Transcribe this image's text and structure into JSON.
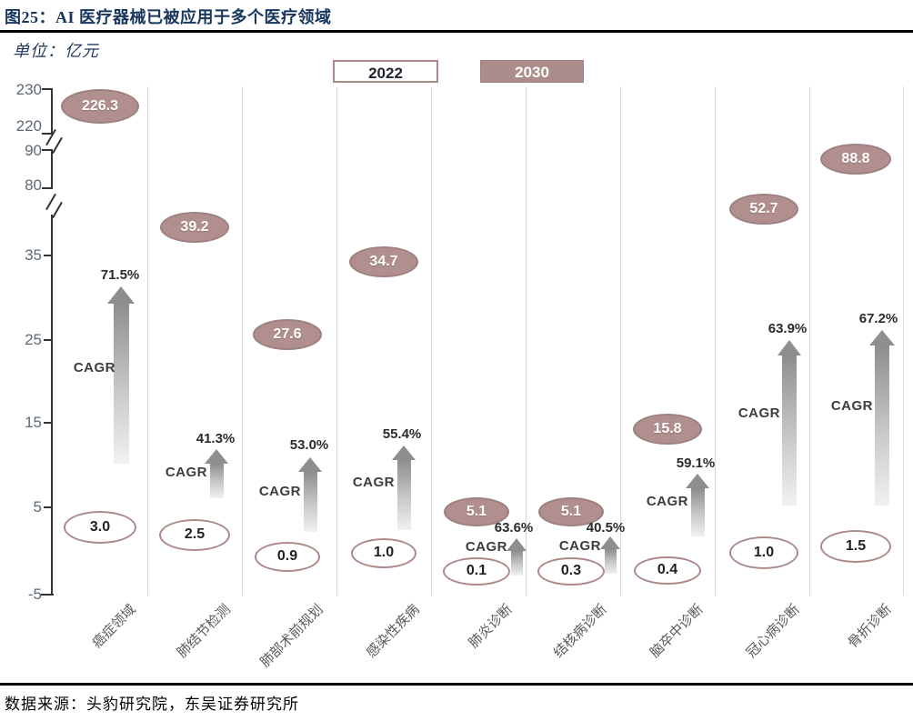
{
  "figure": {
    "title": "图25：AI 医疗器械已被应用于多个医疗领域",
    "source": "数据来源：头豹研究院，东吴证券研究所"
  },
  "chart_data": {
    "type": "bar",
    "title": "图25：AI 医疗器械已被应用于多个医疗领域",
    "unit_label": "单位：亿元",
    "legend": [
      {
        "label": "2022",
        "style": "outline"
      },
      {
        "label": "2030",
        "style": "filled"
      }
    ],
    "legend_position": "top",
    "categories": [
      "癌症领域",
      "肺结节检测",
      "肺部术前规划",
      "感染性疾病",
      "肺炎诊断",
      "结核病诊断",
      "脑卒中诊断",
      "冠心病诊断",
      "骨折诊断"
    ],
    "series": [
      {
        "name": "2022",
        "values": [
          3.0,
          2.5,
          0.9,
          1.0,
          0.1,
          0.3,
          0.4,
          1.0,
          1.5
        ],
        "labels": [
          "3.0",
          "2.5",
          "0.9",
          "1.0",
          "0.1",
          "0.3",
          "0.4",
          "1.0",
          "1.5"
        ]
      },
      {
        "name": "2030",
        "values": [
          226.3,
          39.2,
          27.6,
          34.7,
          5.1,
          5.1,
          15.8,
          52.7,
          88.8
        ],
        "labels": [
          "226.3",
          "39.2",
          "27.6",
          "34.7",
          "5.1",
          "5.1",
          "15.8",
          "52.7",
          "88.8"
        ]
      }
    ],
    "cagr_label": "CAGR",
    "cagr_percent": [
      "71.5%",
      "41.3%",
      "53.0%",
      "55.4%",
      "63.6%",
      "40.5%",
      "59.1%",
      "63.9%",
      "67.2%"
    ],
    "y_axis": {
      "ticks": [
        230,
        220,
        90,
        80,
        35,
        25,
        15,
        5,
        -5
      ],
      "tick_labels": [
        "230",
        "220",
        "90",
        "80",
        "35",
        "25",
        "15",
        "5",
        "-5"
      ],
      "breaks": [
        [
          90,
          220
        ],
        [
          35,
          80
        ]
      ],
      "grid": "vertical-category-separators"
    },
    "colors": {
      "title_navy": "#17365d",
      "oval_fill": "#b18f8f",
      "oval_border": "#9d8080",
      "open_oval_border": "#ad8a8a",
      "legend_2030_fill": "#ad8c8c",
      "arrow_gray": "#8e8e8e",
      "separator_gray": "#d9d9d9",
      "tick_text": "#5e6974"
    }
  }
}
